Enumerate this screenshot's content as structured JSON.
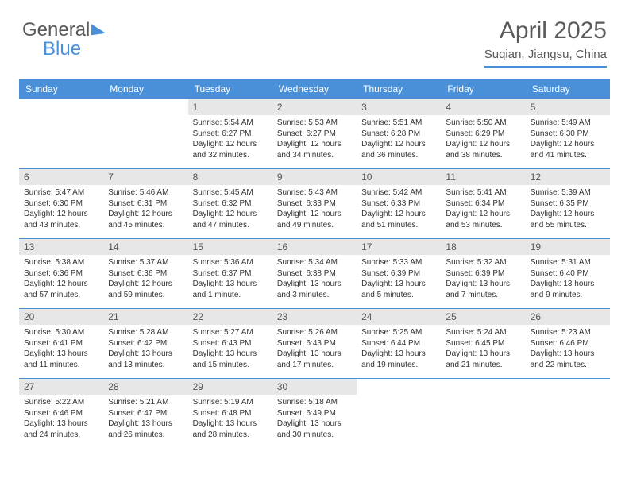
{
  "logo": {
    "part1": "General",
    "part2": "Blue"
  },
  "header": {
    "month": "April 2025",
    "location": "Suqian, Jiangsu, China"
  },
  "dayHeaders": [
    "Sunday",
    "Monday",
    "Tuesday",
    "Wednesday",
    "Thursday",
    "Friday",
    "Saturday"
  ],
  "colors": {
    "accent": "#4a90d9",
    "daynum_bg": "#e7e7e7",
    "text": "#333333",
    "header_text": "#5a5a5a",
    "background": "#ffffff"
  },
  "calendar": {
    "startDayIndex": 2,
    "days": [
      {
        "n": 1,
        "sunrise": "5:54 AM",
        "sunset": "6:27 PM",
        "dl": "12 hours and 32 minutes."
      },
      {
        "n": 2,
        "sunrise": "5:53 AM",
        "sunset": "6:27 PM",
        "dl": "12 hours and 34 minutes."
      },
      {
        "n": 3,
        "sunrise": "5:51 AM",
        "sunset": "6:28 PM",
        "dl": "12 hours and 36 minutes."
      },
      {
        "n": 4,
        "sunrise": "5:50 AM",
        "sunset": "6:29 PM",
        "dl": "12 hours and 38 minutes."
      },
      {
        "n": 5,
        "sunrise": "5:49 AM",
        "sunset": "6:30 PM",
        "dl": "12 hours and 41 minutes."
      },
      {
        "n": 6,
        "sunrise": "5:47 AM",
        "sunset": "6:30 PM",
        "dl": "12 hours and 43 minutes."
      },
      {
        "n": 7,
        "sunrise": "5:46 AM",
        "sunset": "6:31 PM",
        "dl": "12 hours and 45 minutes."
      },
      {
        "n": 8,
        "sunrise": "5:45 AM",
        "sunset": "6:32 PM",
        "dl": "12 hours and 47 minutes."
      },
      {
        "n": 9,
        "sunrise": "5:43 AM",
        "sunset": "6:33 PM",
        "dl": "12 hours and 49 minutes."
      },
      {
        "n": 10,
        "sunrise": "5:42 AM",
        "sunset": "6:33 PM",
        "dl": "12 hours and 51 minutes."
      },
      {
        "n": 11,
        "sunrise": "5:41 AM",
        "sunset": "6:34 PM",
        "dl": "12 hours and 53 minutes."
      },
      {
        "n": 12,
        "sunrise": "5:39 AM",
        "sunset": "6:35 PM",
        "dl": "12 hours and 55 minutes."
      },
      {
        "n": 13,
        "sunrise": "5:38 AM",
        "sunset": "6:36 PM",
        "dl": "12 hours and 57 minutes."
      },
      {
        "n": 14,
        "sunrise": "5:37 AM",
        "sunset": "6:36 PM",
        "dl": "12 hours and 59 minutes."
      },
      {
        "n": 15,
        "sunrise": "5:36 AM",
        "sunset": "6:37 PM",
        "dl": "13 hours and 1 minute."
      },
      {
        "n": 16,
        "sunrise": "5:34 AM",
        "sunset": "6:38 PM",
        "dl": "13 hours and 3 minutes."
      },
      {
        "n": 17,
        "sunrise": "5:33 AM",
        "sunset": "6:39 PM",
        "dl": "13 hours and 5 minutes."
      },
      {
        "n": 18,
        "sunrise": "5:32 AM",
        "sunset": "6:39 PM",
        "dl": "13 hours and 7 minutes."
      },
      {
        "n": 19,
        "sunrise": "5:31 AM",
        "sunset": "6:40 PM",
        "dl": "13 hours and 9 minutes."
      },
      {
        "n": 20,
        "sunrise": "5:30 AM",
        "sunset": "6:41 PM",
        "dl": "13 hours and 11 minutes."
      },
      {
        "n": 21,
        "sunrise": "5:28 AM",
        "sunset": "6:42 PM",
        "dl": "13 hours and 13 minutes."
      },
      {
        "n": 22,
        "sunrise": "5:27 AM",
        "sunset": "6:43 PM",
        "dl": "13 hours and 15 minutes."
      },
      {
        "n": 23,
        "sunrise": "5:26 AM",
        "sunset": "6:43 PM",
        "dl": "13 hours and 17 minutes."
      },
      {
        "n": 24,
        "sunrise": "5:25 AM",
        "sunset": "6:44 PM",
        "dl": "13 hours and 19 minutes."
      },
      {
        "n": 25,
        "sunrise": "5:24 AM",
        "sunset": "6:45 PM",
        "dl": "13 hours and 21 minutes."
      },
      {
        "n": 26,
        "sunrise": "5:23 AM",
        "sunset": "6:46 PM",
        "dl": "13 hours and 22 minutes."
      },
      {
        "n": 27,
        "sunrise": "5:22 AM",
        "sunset": "6:46 PM",
        "dl": "13 hours and 24 minutes."
      },
      {
        "n": 28,
        "sunrise": "5:21 AM",
        "sunset": "6:47 PM",
        "dl": "13 hours and 26 minutes."
      },
      {
        "n": 29,
        "sunrise": "5:19 AM",
        "sunset": "6:48 PM",
        "dl": "13 hours and 28 minutes."
      },
      {
        "n": 30,
        "sunrise": "5:18 AM",
        "sunset": "6:49 PM",
        "dl": "13 hours and 30 minutes."
      }
    ]
  },
  "labels": {
    "sunrise": "Sunrise:",
    "sunset": "Sunset:",
    "daylight": "Daylight:"
  }
}
